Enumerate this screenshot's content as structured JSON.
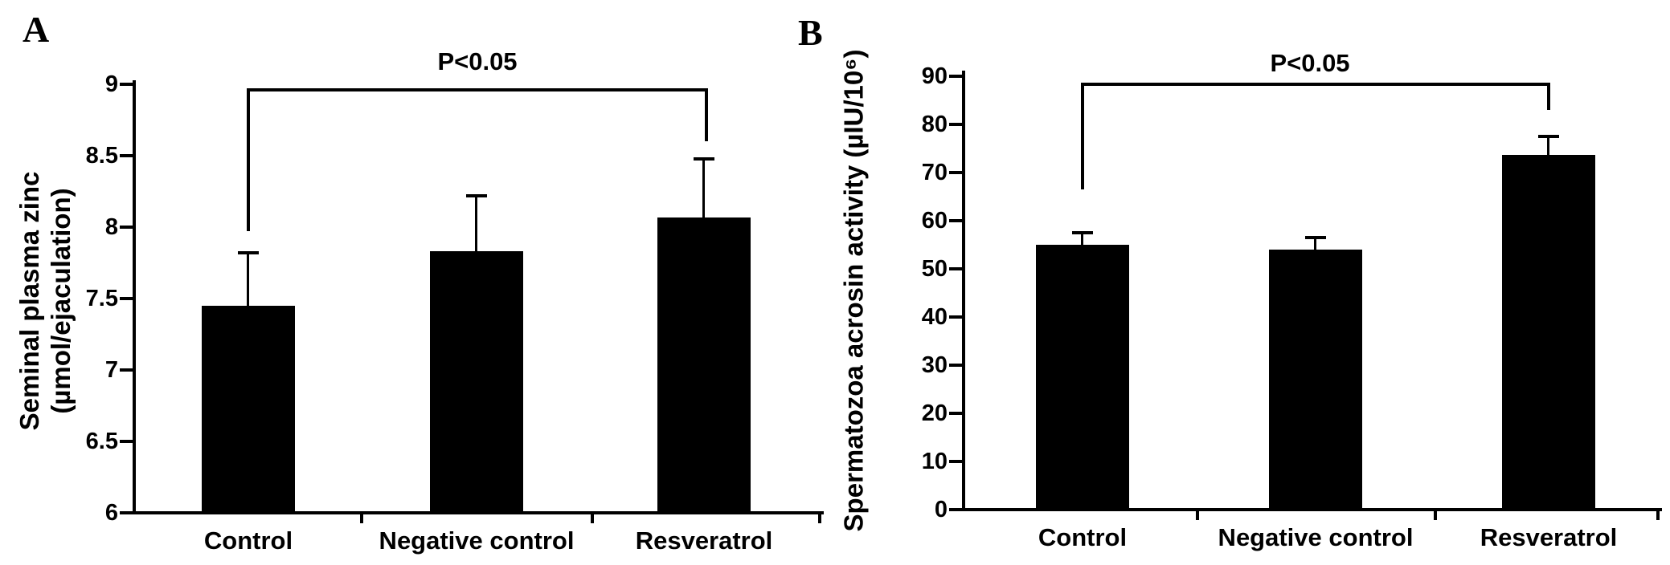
{
  "chart_data": [
    {
      "type": "bar",
      "panel_label": "A",
      "categories": [
        "Control",
        "Negative control",
        "Resveratrol"
      ],
      "values": [
        7.45,
        7.83,
        8.07
      ],
      "errors_plus": [
        0.37,
        0.39,
        0.41
      ],
      "error_bar_tops": [
        7.82,
        8.22,
        8.48
      ],
      "ylabel_lines": [
        "Seminal plasma zinc",
        "(µmol/ejaculation)"
      ],
      "ylim": [
        6,
        9
      ],
      "ytick_values": [
        6,
        6.5,
        7,
        7.5,
        8,
        8.5,
        9
      ],
      "ytick_labels": [
        "6",
        "6.5",
        "7",
        "7.5",
        "8",
        "8.5",
        "9"
      ],
      "bar_color": "#000000",
      "background_color": "#ffffff",
      "legend": "none",
      "grid": "off",
      "significance": {
        "label": "P<0.05",
        "compare": [
          "Control",
          "Resveratrol"
        ],
        "bracket_top_value": 8.97,
        "left_leg_bottom_value": 7.97,
        "right_leg_bottom_value": 8.6
      }
    },
    {
      "type": "bar",
      "panel_label": "B",
      "categories": [
        "Control",
        "Negative control",
        "Resveratrol"
      ],
      "values": [
        55,
        54,
        73.7
      ],
      "errors_plus": [
        2.5,
        2.5,
        3.8
      ],
      "error_bar_tops": [
        57.5,
        56.5,
        77.5
      ],
      "ylabel": "Spermatozoa acrosin activity (µIU/10⁶)",
      "ylim": [
        0,
        90
      ],
      "ytick_values": [
        0,
        10,
        20,
        30,
        40,
        50,
        60,
        70,
        80,
        90
      ],
      "ytick_labels": [
        "0",
        "10",
        "20",
        "30",
        "40",
        "50",
        "60",
        "70",
        "80",
        "90"
      ],
      "bar_color": "#000000",
      "background_color": "#ffffff",
      "legend": "none",
      "grid": "off",
      "significance": {
        "label": "P<0.05",
        "compare": [
          "Control",
          "Resveratrol"
        ],
        "bracket_top_value": 88.7,
        "left_leg_bottom_value": 66.5,
        "right_leg_bottom_value": 83
      }
    }
  ]
}
